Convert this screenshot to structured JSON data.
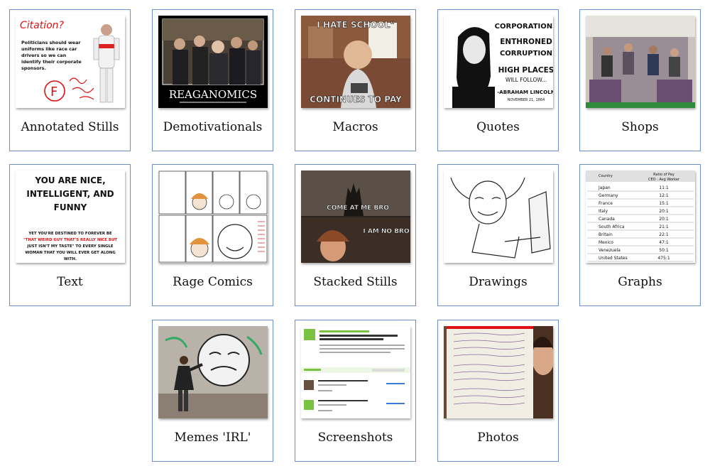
{
  "tiles": [
    {
      "label": "Annotated Stills",
      "texts": [
        "Citation?",
        "Politicians should wear",
        "uniforms like race car",
        "drivers so we can",
        "identify their corporate",
        "sponsors.",
        "F"
      ]
    },
    {
      "label": "Demotivationals",
      "texts": [
        "REAGANOMICS"
      ]
    },
    {
      "label": "Macros",
      "texts": [
        "I HATE SCHOOL\"",
        "CONTINUES TO PAY"
      ]
    },
    {
      "label": "Quotes",
      "texts": [
        "CORPORATIONS",
        "ENTHRONED",
        "CORRUPTION",
        "HIGH PLACES",
        "WILL FOLLOW...",
        "-ABRAHAM LINCOLN",
        "NOVEMBER 21, 1864"
      ]
    },
    {
      "label": "Shops",
      "texts": []
    },
    {
      "label": "Text",
      "texts": [
        "YOU ARE NICE,",
        "INTELLIGENT, AND",
        "FUNNY",
        "YET YOU'RE DESTINED TO FOREVER BE",
        "\"THAT WEIRD GUY THAT'S REALLY NICE BUT",
        "JUST ISN'T MY TASTE\" TO EVERY SINGLE",
        "WOMAN THAT YOU WILL EVER GET ALONG",
        "WITH."
      ]
    },
    {
      "label": "Rage Comics",
      "texts": []
    },
    {
      "label": "Stacked Stills",
      "texts": [
        "COME AT ME BRO",
        "I AM NO BRO"
      ]
    },
    {
      "label": "Drawings",
      "texts": []
    },
    {
      "label": "Graphs",
      "texts": [
        "Country",
        "Ratio of Pay",
        "CEO : Avg Worker"
      ],
      "table": [
        [
          "Japan",
          "11:1"
        ],
        [
          "Germany",
          "12:1"
        ],
        [
          "France",
          "15:1"
        ],
        [
          "Italy",
          "20:1"
        ],
        [
          "Canada",
          "20:1"
        ],
        [
          "South Africa",
          "21:1"
        ],
        [
          "Britain",
          "22:1"
        ],
        [
          "Mexico",
          "47:1"
        ],
        [
          "Venezuela",
          "50:1"
        ],
        [
          "United States",
          "475:1"
        ]
      ]
    },
    {
      "label": "Memes 'IRL'",
      "texts": []
    },
    {
      "label": "Screenshots",
      "texts": []
    },
    {
      "label": "Photos",
      "texts": []
    }
  ]
}
